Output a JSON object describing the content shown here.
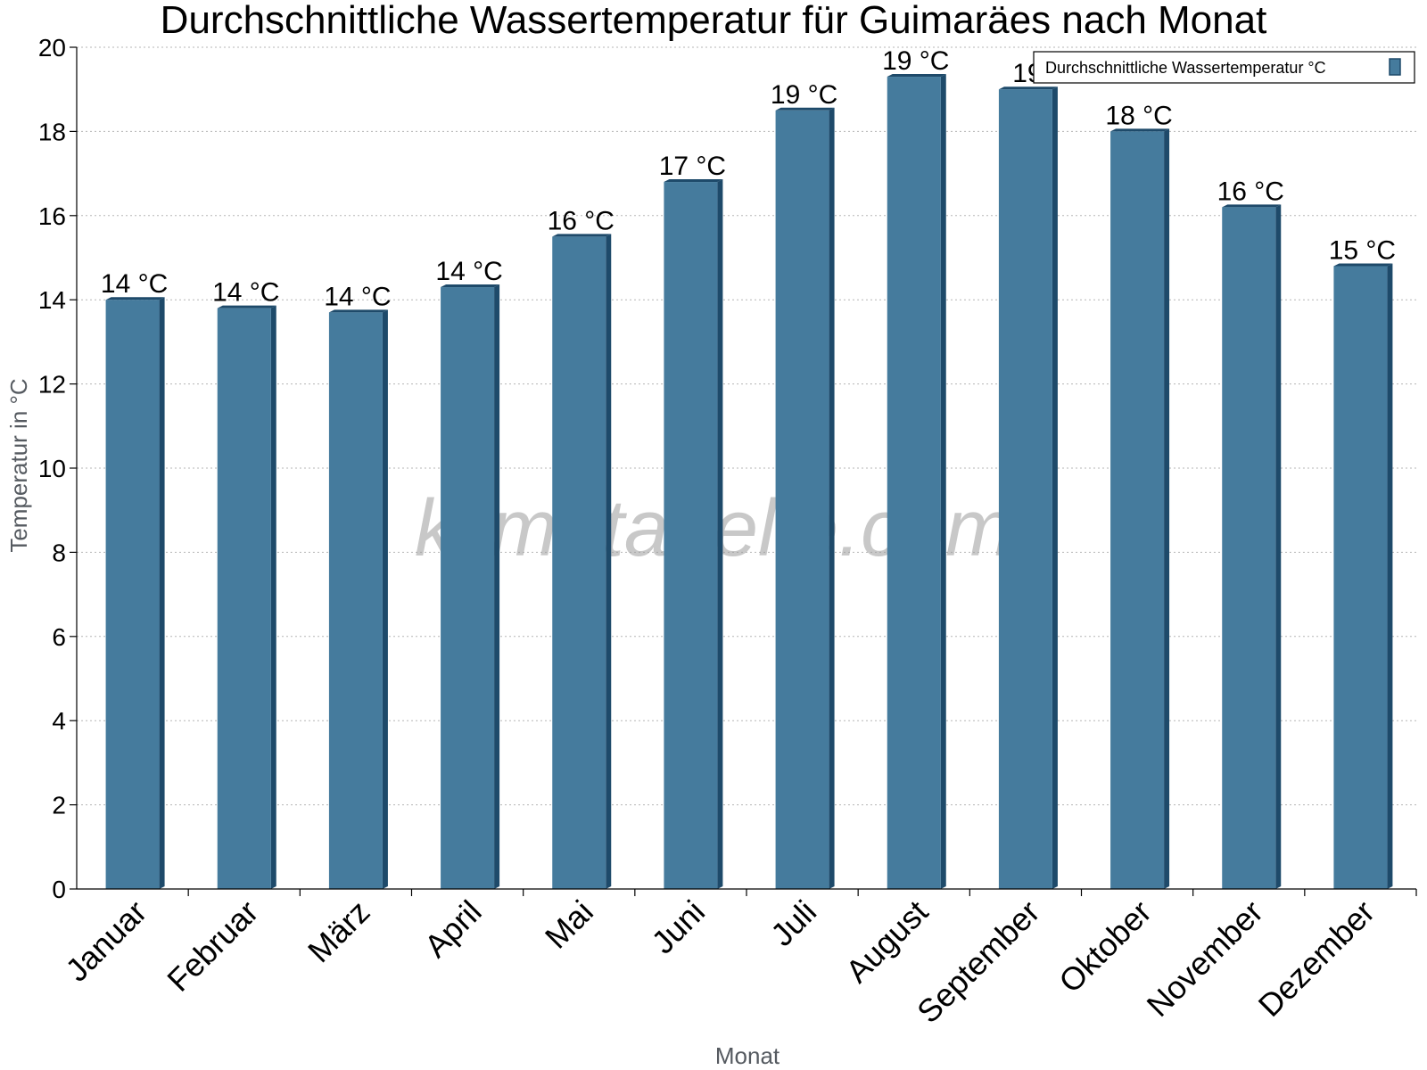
{
  "chart_data": {
    "type": "bar",
    "title": "Durchschnittliche Wassertemperatur für Guimaräes nach Monat",
    "xlabel": "Monat",
    "ylabel": "Temperatur in °C",
    "ylim": [
      0,
      20
    ],
    "yticks": [
      0,
      2,
      4,
      6,
      8,
      10,
      12,
      14,
      16,
      18,
      20
    ],
    "grid": true,
    "legend_position": "top-right",
    "categories": [
      "Januar",
      "Februar",
      "März",
      "April",
      "Mai",
      "Juni",
      "Juli",
      "August",
      "September",
      "Oktober",
      "November",
      "Dezember"
    ],
    "series": [
      {
        "name": "Durchschnittliche Wassertemperatur °C",
        "values": [
          14.0,
          13.8,
          13.7,
          14.3,
          15.5,
          16.8,
          18.5,
          19.3,
          19.0,
          18.0,
          16.2,
          14.8
        ],
        "labels": [
          "14 °C",
          "14 °C",
          "14 °C",
          "14 °C",
          "16 °C",
          "17 °C",
          "19 °C",
          "19 °C",
          "19",
          "18 °C",
          "16 °C",
          "15 °C"
        ],
        "color": "#457b9d",
        "edge_color": "#1e4a6a"
      }
    ]
  },
  "watermark": "klimatabelle.com"
}
